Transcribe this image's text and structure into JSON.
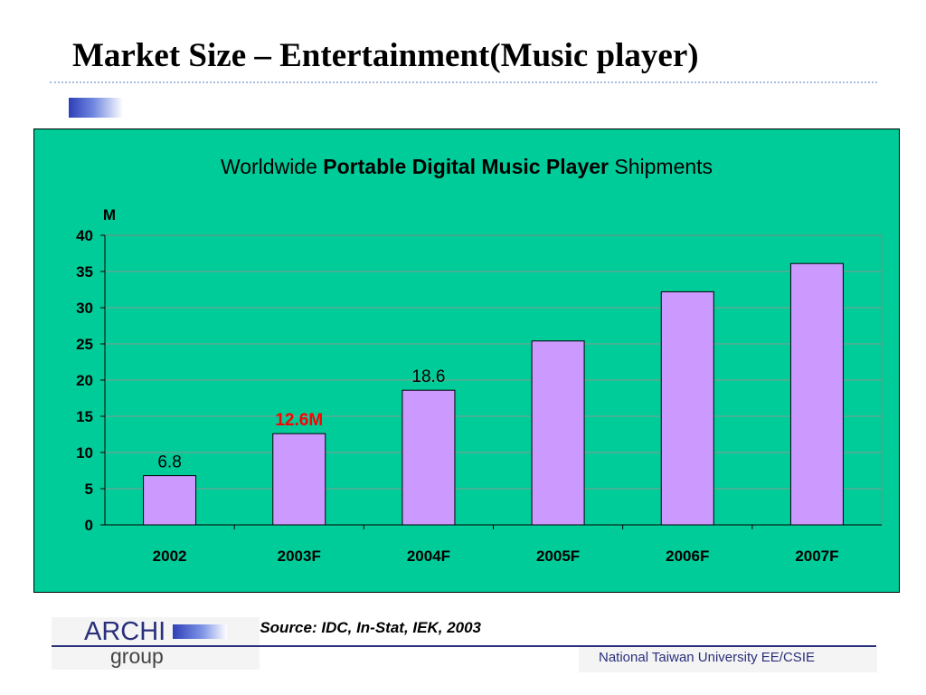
{
  "slide": {
    "title": "Market Size – Entertainment(Music player)",
    "source_note": "*   Source: IDC, In-Stat, IEK, 2003",
    "logo_text_main": "ARCHI",
    "logo_text_sub": "group",
    "affiliation": "National Taiwan University EE/CSIE"
  },
  "colors": {
    "panel_background": "#00cc99",
    "bar_fill": "#cc99ff",
    "highlight_label": "#ff0000",
    "brand_blue": "#2a2f7a"
  },
  "chart_data": {
    "type": "bar",
    "title_prefix": "Worldwide ",
    "title_bold": "Portable Digital Music Player",
    "title_suffix": " Shipments",
    "ylabel": "M",
    "xlabel": "",
    "categories": [
      "2002",
      "2003F",
      "2004F",
      "2005F",
      "2006F",
      "2007F"
    ],
    "values": [
      6.8,
      12.6,
      18.6,
      25.4,
      32.2,
      36.1
    ],
    "data_labels": [
      {
        "index": 0,
        "text": "6.8",
        "color": "#000000",
        "bold": false
      },
      {
        "index": 1,
        "text": "12.6M",
        "color": "#ff0000",
        "bold": true
      },
      {
        "index": 2,
        "text": "18.6",
        "color": "#000000",
        "bold": false
      }
    ],
    "ylim": [
      0,
      40
    ],
    "yticks": [
      "0",
      "5",
      "10",
      "15",
      "20",
      "25",
      "30",
      "35",
      "40"
    ],
    "grid": true,
    "legend": "none"
  }
}
